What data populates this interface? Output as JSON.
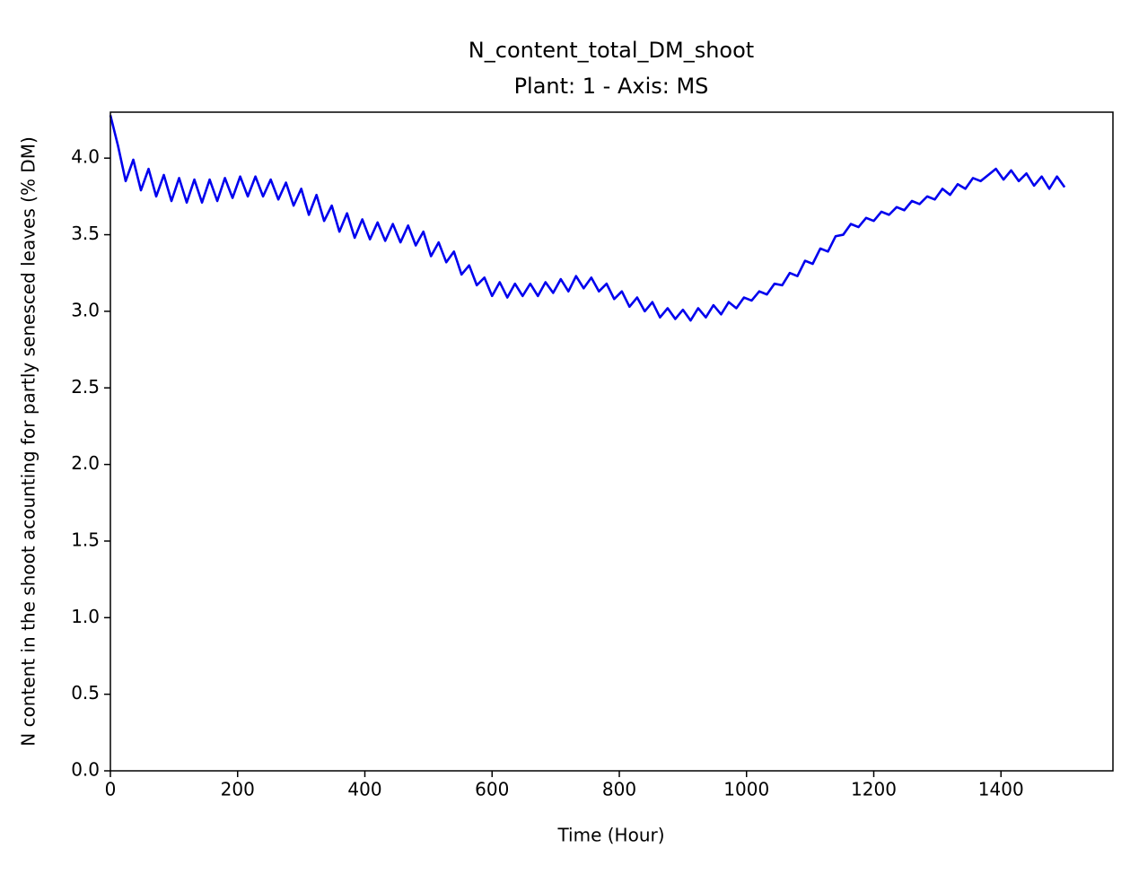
{
  "chart_data": {
    "type": "line",
    "title": "N_content_total_DM_shoot",
    "subtitle": "Plant: 1 - Axis: MS",
    "xlabel": "Time (Hour)",
    "ylabel": "N content in the shoot acounting for partly senesced leaves (% DM)",
    "color": "#0000ee",
    "x": [
      0,
      12,
      24,
      36,
      48,
      60,
      72,
      84,
      96,
      108,
      120,
      132,
      144,
      156,
      168,
      180,
      192,
      204,
      216,
      228,
      240,
      252,
      264,
      276,
      288,
      300,
      312,
      324,
      336,
      348,
      360,
      372,
      384,
      396,
      408,
      420,
      432,
      444,
      456,
      468,
      480,
      492,
      504,
      516,
      528,
      540,
      552,
      564,
      576,
      588,
      600,
      612,
      624,
      636,
      648,
      660,
      672,
      684,
      696,
      708,
      720,
      732,
      744,
      756,
      768,
      780,
      792,
      804,
      816,
      828,
      840,
      852,
      864,
      876,
      888,
      900,
      912,
      924,
      936,
      948,
      960,
      972,
      984,
      996,
      1008,
      1020,
      1032,
      1044,
      1056,
      1068,
      1080,
      1092,
      1104,
      1116,
      1128,
      1140,
      1152,
      1164,
      1176,
      1188,
      1200,
      1212,
      1224,
      1236,
      1248,
      1260,
      1272,
      1284,
      1296,
      1308,
      1320,
      1332,
      1344,
      1356,
      1368,
      1380,
      1392,
      1404,
      1416,
      1428,
      1440,
      1452,
      1464,
      1476,
      1488,
      1500
    ],
    "values": [
      4.28,
      4.08,
      3.85,
      3.99,
      3.79,
      3.93,
      3.75,
      3.89,
      3.72,
      3.87,
      3.71,
      3.86,
      3.71,
      3.86,
      3.72,
      3.87,
      3.74,
      3.88,
      3.75,
      3.88,
      3.75,
      3.86,
      3.73,
      3.84,
      3.69,
      3.8,
      3.63,
      3.76,
      3.59,
      3.69,
      3.52,
      3.64,
      3.48,
      3.6,
      3.47,
      3.58,
      3.46,
      3.57,
      3.45,
      3.56,
      3.43,
      3.52,
      3.36,
      3.45,
      3.32,
      3.39,
      3.24,
      3.3,
      3.17,
      3.22,
      3.1,
      3.19,
      3.09,
      3.18,
      3.1,
      3.18,
      3.1,
      3.19,
      3.12,
      3.21,
      3.13,
      3.23,
      3.15,
      3.22,
      3.13,
      3.18,
      3.08,
      3.13,
      3.03,
      3.09,
      3.0,
      3.06,
      2.96,
      3.02,
      2.95,
      3.01,
      2.94,
      3.02,
      2.96,
      3.04,
      2.98,
      3.06,
      3.02,
      3.09,
      3.07,
      3.13,
      3.11,
      3.18,
      3.17,
      3.25,
      3.23,
      3.33,
      3.31,
      3.41,
      3.39,
      3.49,
      3.5,
      3.57,
      3.55,
      3.61,
      3.59,
      3.65,
      3.63,
      3.68,
      3.66,
      3.72,
      3.7,
      3.75,
      3.73,
      3.8,
      3.76,
      3.83,
      3.8,
      3.87,
      3.85,
      3.89,
      3.93,
      3.86,
      3.92,
      3.85,
      3.9,
      3.82,
      3.88,
      3.8,
      3.88,
      3.81
    ],
    "xlim": [
      0,
      1576
    ],
    "ylim": [
      0,
      4.3
    ],
    "xticks": [
      0,
      200,
      400,
      600,
      800,
      1000,
      1200,
      1400
    ],
    "yticks": [
      {
        "value": 0,
        "label": "0.0"
      },
      0.5,
      {
        "value": 1,
        "label": "1.0"
      },
      1.5,
      {
        "value": 2,
        "label": "2.0"
      },
      2.5,
      {
        "value": 3,
        "label": "3.0"
      },
      3.5,
      {
        "value": 4,
        "label": "4.0"
      }
    ]
  }
}
